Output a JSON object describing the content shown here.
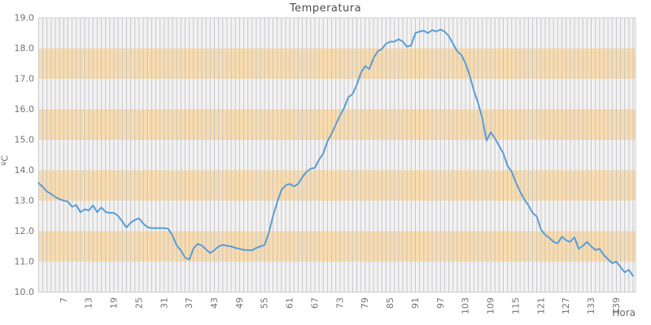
{
  "chart_data": {
    "type": "line",
    "title": "Temperatura",
    "xlabel": "Hora",
    "ylabel": "ºC",
    "ylim": [
      10.0,
      19.0
    ],
    "y_ticks": [
      "19.0",
      "18.0",
      "17.0",
      "16.0",
      "15.0",
      "14.0",
      "13.0",
      "12.0",
      "11.0",
      "10.0"
    ],
    "x_ticks": [
      7,
      13,
      19,
      25,
      31,
      37,
      43,
      49,
      55,
      61,
      67,
      73,
      79,
      85,
      91,
      97,
      103,
      109,
      115,
      121,
      127,
      133,
      139
    ],
    "x_start": 1,
    "x_tick_step": 6,
    "grid": "vertical line per hour, horizontal striped bands",
    "legend": "none",
    "bands": [
      [
        11,
        12
      ],
      [
        13,
        14
      ],
      [
        15,
        16
      ],
      [
        17,
        18
      ]
    ],
    "series": [
      {
        "name": "Temperatura",
        "x_unit": "Hora",
        "values": [
          13.58,
          13.45,
          13.3,
          13.22,
          13.12,
          13.05,
          13.0,
          12.97,
          12.8,
          12.86,
          12.62,
          12.72,
          12.68,
          12.85,
          12.62,
          12.78,
          12.63,
          12.6,
          12.6,
          12.5,
          12.32,
          12.12,
          12.28,
          12.37,
          12.42,
          12.25,
          12.13,
          12.1,
          12.1,
          12.1,
          12.1,
          12.08,
          11.85,
          11.53,
          11.37,
          11.13,
          11.07,
          11.43,
          11.58,
          11.53,
          11.4,
          11.28,
          11.38,
          11.5,
          11.55,
          11.52,
          11.5,
          11.45,
          11.42,
          11.38,
          11.38,
          11.37,
          11.45,
          11.5,
          11.55,
          11.95,
          12.5,
          12.95,
          13.35,
          13.5,
          13.55,
          13.47,
          13.55,
          13.77,
          13.95,
          14.05,
          14.08,
          14.35,
          14.55,
          14.95,
          15.2,
          15.5,
          15.8,
          16.05,
          16.4,
          16.5,
          16.8,
          17.2,
          17.42,
          17.32,
          17.68,
          17.9,
          17.98,
          18.15,
          18.22,
          18.22,
          18.3,
          18.22,
          18.05,
          18.1,
          18.5,
          18.55,
          18.58,
          18.5,
          18.6,
          18.55,
          18.62,
          18.55,
          18.4,
          18.15,
          17.9,
          17.78,
          17.5,
          17.1,
          16.6,
          16.2,
          15.7,
          14.97,
          15.25,
          15.05,
          14.8,
          14.55,
          14.15,
          13.95,
          13.6,
          13.3,
          13.05,
          12.85,
          12.6,
          12.48,
          12.05,
          11.88,
          11.78,
          11.65,
          11.6,
          11.82,
          11.7,
          11.65,
          11.8,
          11.42,
          11.52,
          11.65,
          11.5,
          11.38,
          11.42,
          11.22,
          11.08,
          10.95,
          11.0,
          10.82,
          10.65,
          10.73,
          10.53
        ]
      }
    ],
    "colors": {
      "line": "#5b9dd7",
      "band": "#f9dcae",
      "plot_bg": "#f2f2f2",
      "grid": "#c2c2c6",
      "tick_text": "#757575",
      "title_text": "#4d4d4d",
      "border": "#cccccc",
      "figure_bg": "#ffffff"
    }
  }
}
